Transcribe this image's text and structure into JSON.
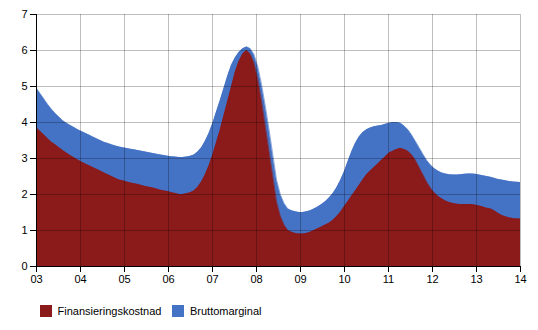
{
  "chart_data": {
    "type": "area",
    "x": [
      2003.0,
      2003.0853,
      2003.1705,
      2003.2558,
      2003.3411,
      2003.4264,
      2003.5116,
      2003.5969,
      2003.6822,
      2003.7674,
      2003.8527,
      2003.938,
      2004.0233,
      2004.1085,
      2004.1938,
      2004.2791,
      2004.3643,
      2004.4496,
      2004.5349,
      2004.6202,
      2004.7054,
      2004.7907,
      2004.876,
      2004.9612,
      2005.0465,
      2005.1318,
      2005.2171,
      2005.3023,
      2005.3876,
      2005.4729,
      2005.5581,
      2005.6434,
      2005.7287,
      2005.814,
      2005.8992,
      2005.9845,
      2006.0698,
      2006.155,
      2006.2403,
      2006.3256,
      2006.4109,
      2006.4961,
      2006.5814,
      2006.6667,
      2006.7519,
      2006.8372,
      2006.9225,
      2007.0078,
      2007.093,
      2007.1783,
      2007.2636,
      2007.3488,
      2007.4341,
      2007.5194,
      2007.6047,
      2007.6899,
      2007.7752,
      2007.8605,
      2007.9457,
      2008.031,
      2008.1163,
      2008.2016,
      2008.2868,
      2008.3721,
      2008.4574,
      2008.5426,
      2008.6279,
      2008.7132,
      2008.7984,
      2008.8837,
      2008.969,
      2009.0543,
      2009.1395,
      2009.2248,
      2009.3101,
      2009.3953,
      2009.4806,
      2009.5659,
      2009.6512,
      2009.7364,
      2009.8217,
      2009.907,
      2009.9922,
      2010.0775,
      2010.1628,
      2010.2481,
      2010.3333,
      2010.4186,
      2010.5039,
      2010.5891,
      2010.6744,
      2010.7597,
      2010.845,
      2010.9302,
      2011.0155,
      2011.1008,
      2011.186,
      2011.2713,
      2011.3566,
      2011.4419,
      2011.5271,
      2011.6124,
      2011.6977,
      2011.7829,
      2011.8682,
      2011.9535,
      2012.0388,
      2012.124,
      2012.2093,
      2012.2946,
      2012.3798,
      2012.4651,
      2012.5504,
      2012.6357,
      2012.7209,
      2012.8062,
      2012.8915,
      2012.9767,
      2013.062,
      2013.1473,
      2013.2326,
      2013.3178,
      2013.4031,
      2013.4884,
      2013.5736,
      2013.6589,
      2013.7442,
      2013.8295,
      2013.9147,
      2014.0
    ],
    "series": [
      {
        "name": "Finansieringskostnad",
        "color": "#8B1A1A",
        "values": [
          3.85,
          3.75,
          3.65,
          3.55,
          3.45,
          3.38,
          3.3,
          3.22,
          3.15,
          3.08,
          3.02,
          2.96,
          2.9,
          2.85,
          2.8,
          2.75,
          2.7,
          2.65,
          2.6,
          2.55,
          2.5,
          2.45,
          2.4,
          2.38,
          2.35,
          2.32,
          2.3,
          2.28,
          2.25,
          2.22,
          2.2,
          2.18,
          2.15,
          2.12,
          2.1,
          2.08,
          2.05,
          2.03,
          2.0,
          2.0,
          2.02,
          2.05,
          2.1,
          2.2,
          2.35,
          2.55,
          2.8,
          3.1,
          3.45,
          3.8,
          4.2,
          4.6,
          5.0,
          5.4,
          5.7,
          5.9,
          6.0,
          5.9,
          5.65,
          5.2,
          4.6,
          3.9,
          3.2,
          2.5,
          1.8,
          1.4,
          1.15,
          1.0,
          0.95,
          0.92,
          0.9,
          0.9,
          0.92,
          0.95,
          1.0,
          1.05,
          1.1,
          1.15,
          1.2,
          1.28,
          1.38,
          1.5,
          1.65,
          1.8,
          1.95,
          2.1,
          2.25,
          2.4,
          2.55,
          2.65,
          2.75,
          2.85,
          2.95,
          3.05,
          3.15,
          3.2,
          3.25,
          3.28,
          3.25,
          3.2,
          3.1,
          2.95,
          2.75,
          2.55,
          2.35,
          2.18,
          2.05,
          1.95,
          1.88,
          1.82,
          1.78,
          1.75,
          1.73,
          1.72,
          1.72,
          1.72,
          1.72,
          1.7,
          1.68,
          1.65,
          1.62,
          1.6,
          1.55,
          1.48,
          1.42,
          1.38,
          1.35,
          1.33,
          1.32,
          1.32
        ]
      },
      {
        "name": "Bruttomarginal",
        "color": "#4472C4",
        "values": [
          4.95,
          4.8,
          4.65,
          4.5,
          4.37,
          4.25,
          4.15,
          4.05,
          3.98,
          3.92,
          3.86,
          3.8,
          3.75,
          3.7,
          3.65,
          3.6,
          3.55,
          3.5,
          3.45,
          3.42,
          3.38,
          3.35,
          3.32,
          3.3,
          3.28,
          3.26,
          3.24,
          3.22,
          3.2,
          3.18,
          3.16,
          3.14,
          3.12,
          3.1,
          3.08,
          3.06,
          3.05,
          3.04,
          3.03,
          3.03,
          3.04,
          3.06,
          3.1,
          3.18,
          3.3,
          3.48,
          3.7,
          3.98,
          4.3,
          4.62,
          4.96,
          5.3,
          5.6,
          5.8,
          5.95,
          6.05,
          6.1,
          6.05,
          5.88,
          5.55,
          5.05,
          4.45,
          3.8,
          3.1,
          2.4,
          2.0,
          1.75,
          1.6,
          1.55,
          1.52,
          1.5,
          1.5,
          1.52,
          1.55,
          1.6,
          1.65,
          1.72,
          1.8,
          1.9,
          2.02,
          2.18,
          2.38,
          2.62,
          2.9,
          3.18,
          3.42,
          3.6,
          3.72,
          3.8,
          3.85,
          3.88,
          3.9,
          3.92,
          3.95,
          3.98,
          4.0,
          4.0,
          3.98,
          3.9,
          3.8,
          3.65,
          3.48,
          3.3,
          3.12,
          2.95,
          2.82,
          2.72,
          2.65,
          2.6,
          2.57,
          2.55,
          2.54,
          2.54,
          2.55,
          2.56,
          2.57,
          2.57,
          2.56,
          2.54,
          2.52,
          2.5,
          2.48,
          2.45,
          2.42,
          2.4,
          2.38,
          2.36,
          2.35,
          2.34,
          2.33
        ]
      }
    ],
    "xlim": [
      2003,
      2014
    ],
    "xticks": [
      {
        "value": 2003,
        "label": "03"
      },
      {
        "value": 2004,
        "label": "04"
      },
      {
        "value": 2005,
        "label": "05"
      },
      {
        "value": 2006,
        "label": "06"
      },
      {
        "value": 2007,
        "label": "07"
      },
      {
        "value": 2008,
        "label": "08"
      },
      {
        "value": 2009,
        "label": "09"
      },
      {
        "value": 2010,
        "label": "10"
      },
      {
        "value": 2011,
        "label": "11"
      },
      {
        "value": 2012,
        "label": "12"
      },
      {
        "value": 2013,
        "label": "13"
      },
      {
        "value": 2014,
        "label": "14"
      }
    ],
    "ylim": [
      0,
      7
    ],
    "yticks": [
      0,
      1,
      2,
      3,
      4,
      5,
      6,
      7
    ],
    "grid": true,
    "legend": "lower left"
  }
}
